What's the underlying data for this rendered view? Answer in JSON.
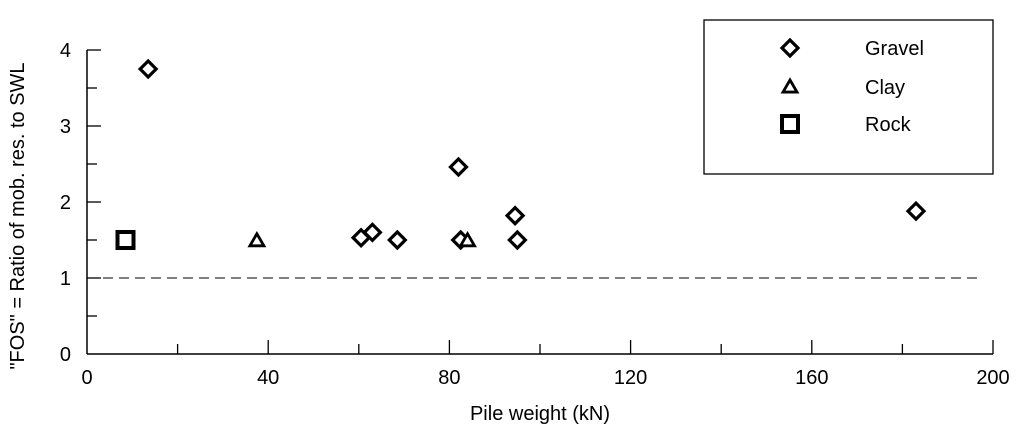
{
  "chart_data": {
    "type": "scatter",
    "title": "",
    "xlabel": "Pile weight (kN)",
    "ylabel": "\"FOS\" = Ratio of mob. res. to SWL",
    "xlim": [
      0,
      200
    ],
    "ylim": [
      0,
      4
    ],
    "x_ticks": [
      0,
      40,
      80,
      120,
      160,
      200
    ],
    "y_ticks": [
      0,
      1,
      2,
      3,
      4
    ],
    "grid": false,
    "legend_position": "top-right",
    "reference_line": {
      "y": 1,
      "style": "dashed"
    },
    "series": [
      {
        "name": "Gravel",
        "marker": "diamond",
        "points": [
          {
            "x": 13.5,
            "y": 3.75
          },
          {
            "x": 60.5,
            "y": 1.53
          },
          {
            "x": 63,
            "y": 1.6
          },
          {
            "x": 68.5,
            "y": 1.5
          },
          {
            "x": 82,
            "y": 2.46
          },
          {
            "x": 82.5,
            "y": 1.5
          },
          {
            "x": 94.5,
            "y": 1.82
          },
          {
            "x": 95,
            "y": 1.5
          },
          {
            "x": 183,
            "y": 1.88
          }
        ]
      },
      {
        "name": "Clay",
        "marker": "triangle",
        "points": [
          {
            "x": 37.5,
            "y": 1.49
          },
          {
            "x": 84,
            "y": 1.49
          }
        ]
      },
      {
        "name": "Rock",
        "marker": "square",
        "points": [
          {
            "x": 8.5,
            "y": 1.5
          }
        ]
      }
    ]
  }
}
